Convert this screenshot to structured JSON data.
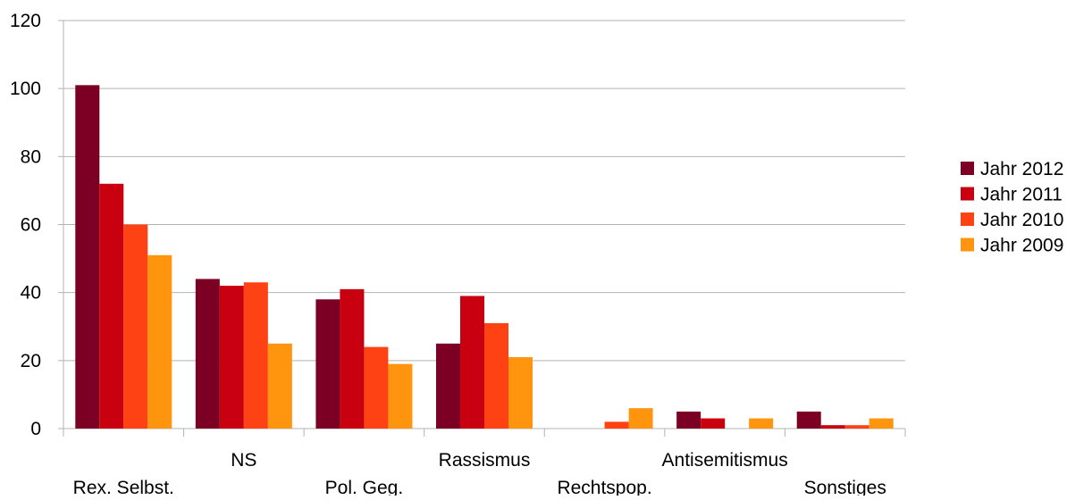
{
  "chart_data": {
    "type": "bar",
    "title": "",
    "xlabel": "",
    "ylabel": "",
    "ylim": [
      0,
      120
    ],
    "yticks": [
      0,
      20,
      40,
      60,
      80,
      100,
      120
    ],
    "grid": true,
    "legend_position": "right",
    "categories": [
      "Rex. Selbst.",
      "NS",
      "Pol. Geg.",
      "Rassismus",
      "Rechtspop.",
      "Antisemitismus",
      "Sonstiges"
    ],
    "series": [
      {
        "name": "Jahr 2012",
        "color": "#7b0023",
        "values": [
          101,
          44,
          38,
          25,
          0,
          5,
          5
        ]
      },
      {
        "name": "Jahr 2011",
        "color": "#c9000f",
        "values": [
          72,
          42,
          41,
          39,
          0,
          3,
          1
        ]
      },
      {
        "name": "Jahr 2010",
        "color": "#ff4214",
        "values": [
          60,
          43,
          24,
          31,
          2,
          0,
          1
        ]
      },
      {
        "name": "Jahr 2009",
        "color": "#ff950e",
        "values": [
          51,
          25,
          19,
          21,
          6,
          3,
          3
        ]
      }
    ]
  }
}
